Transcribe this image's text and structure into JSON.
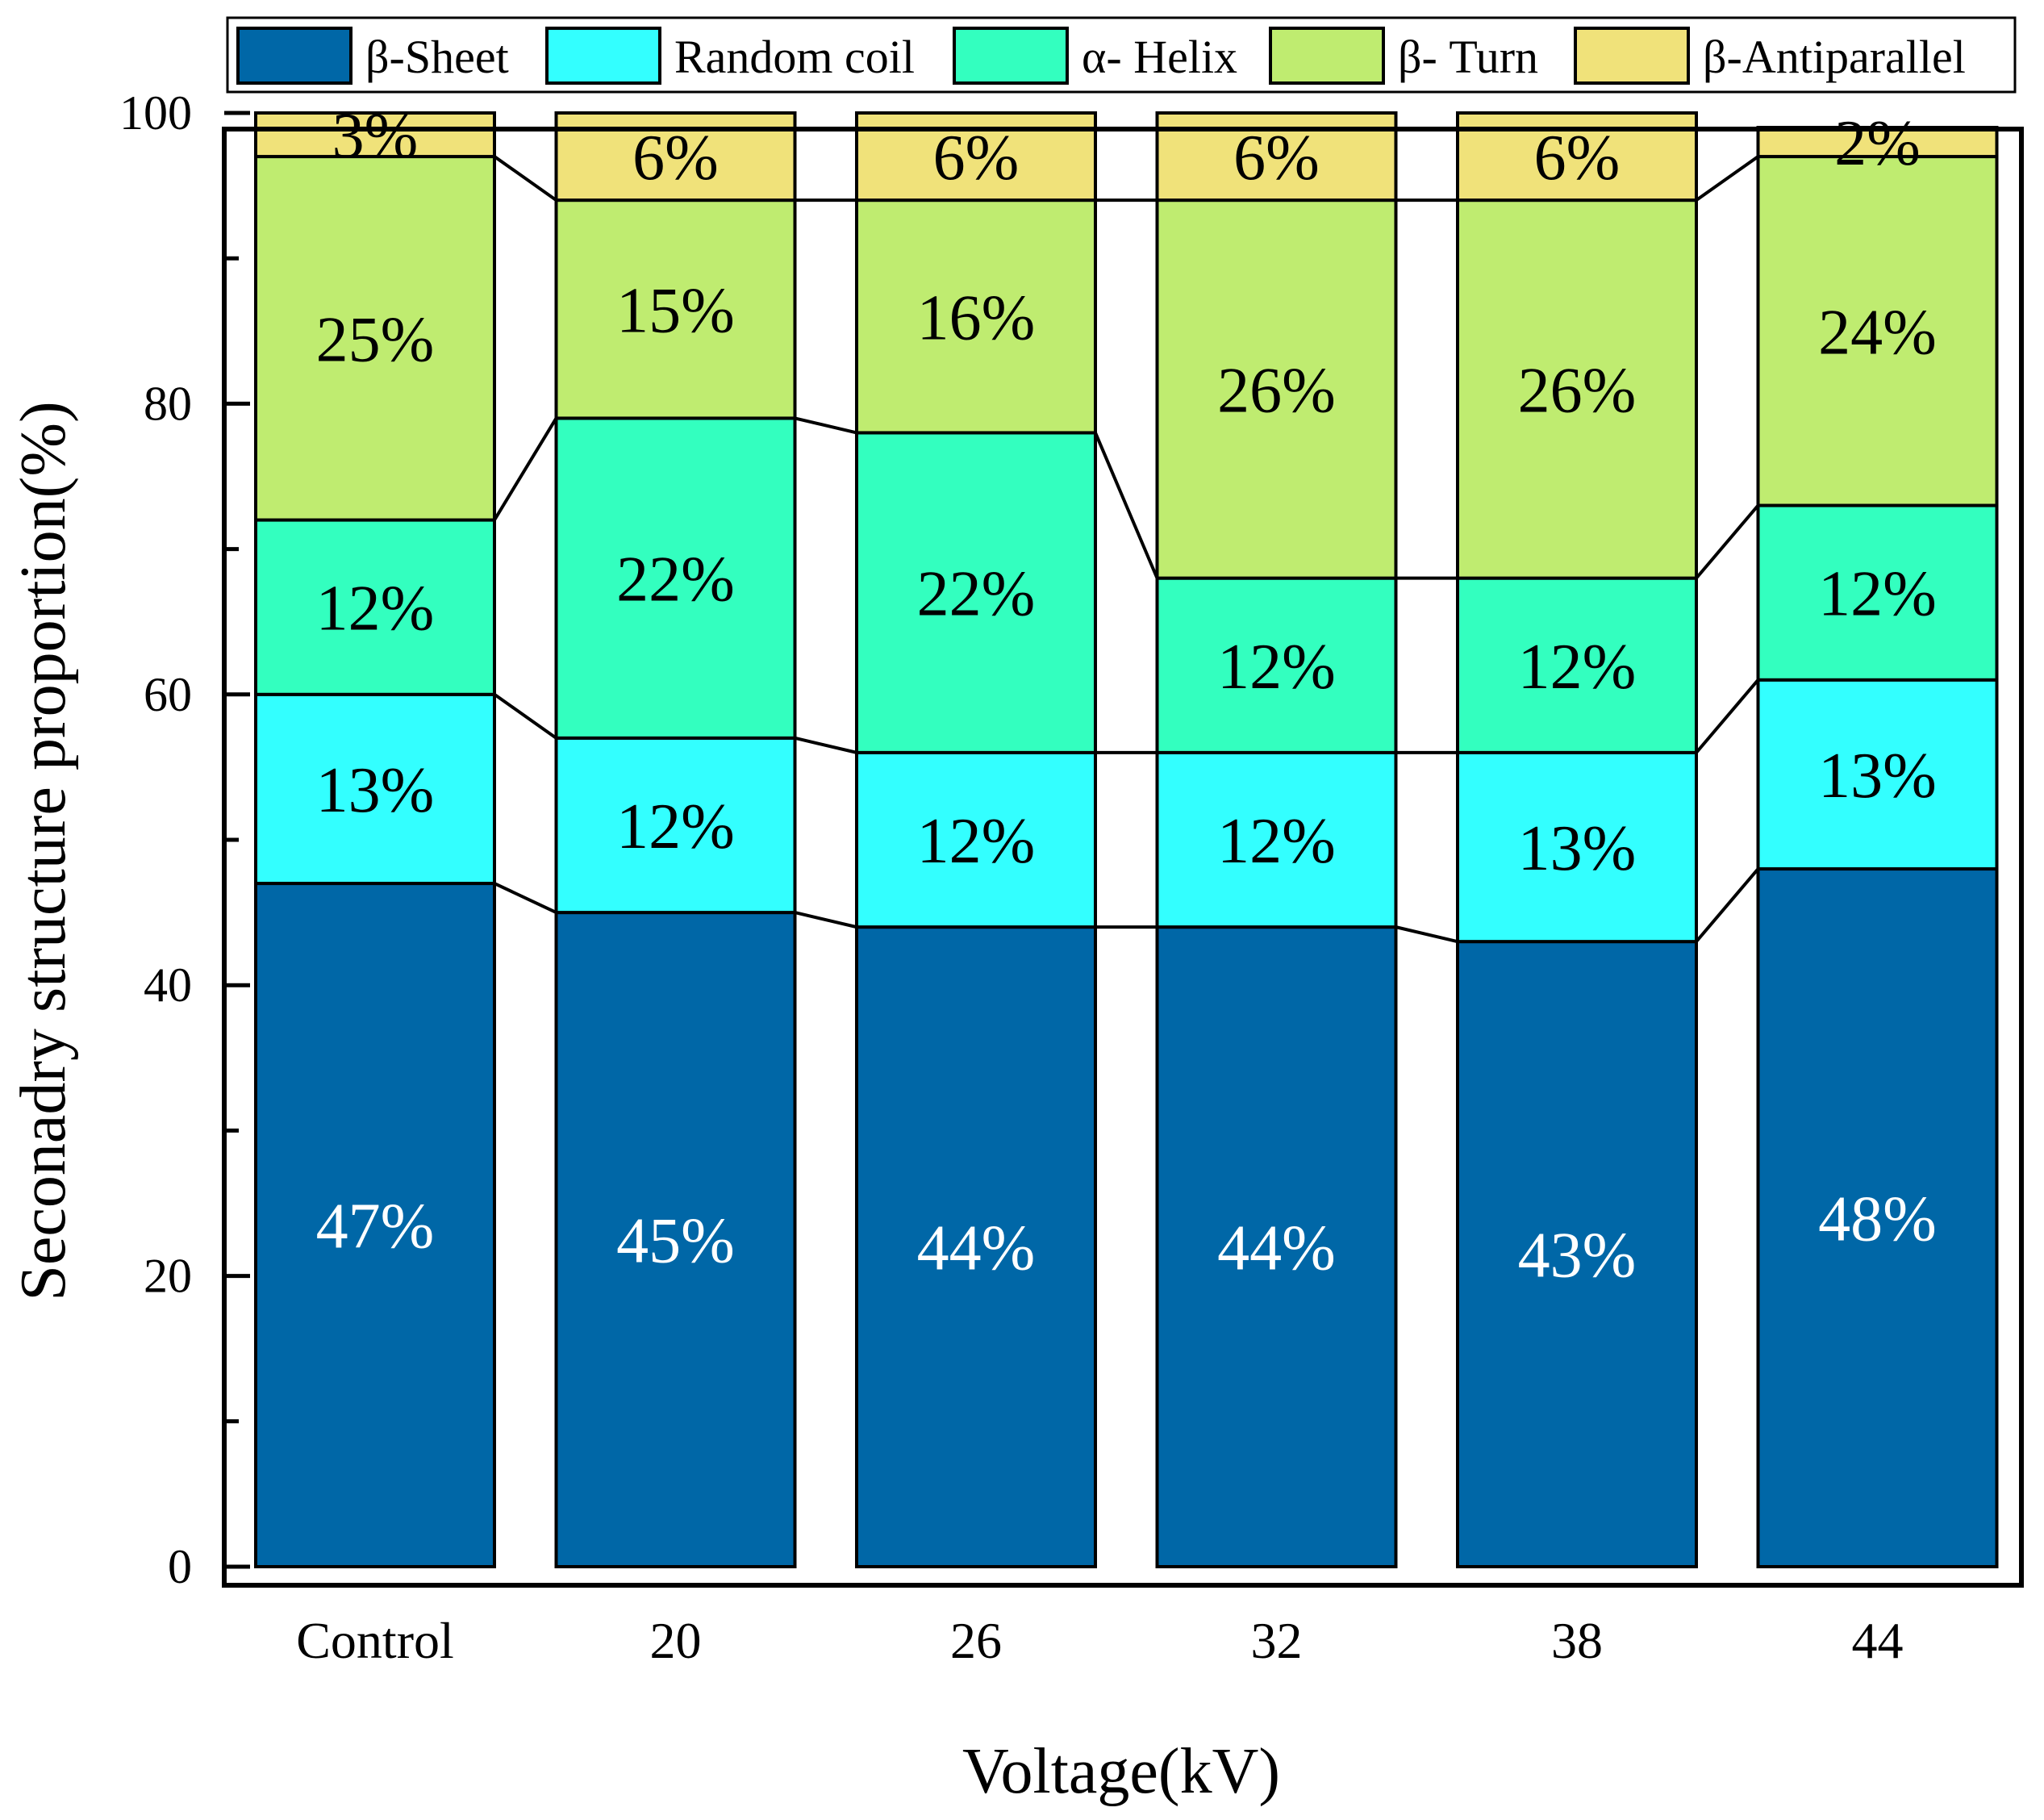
{
  "chart_data": {
    "type": "bar",
    "stacked": true,
    "categories": [
      "Control",
      "20",
      "26",
      "32",
      "38",
      "44"
    ],
    "series": [
      {
        "name": "β-Sheet",
        "color": "#0067A7",
        "values": [
          47,
          45,
          44,
          44,
          43,
          48
        ],
        "labels": [
          "47%",
          "45%",
          "44%",
          "44%",
          "43%",
          "48%"
        ],
        "label_color": "#FFFFFF"
      },
      {
        "name": "Random coil",
        "color": "#33FFFF",
        "values": [
          13,
          12,
          12,
          12,
          13,
          13
        ],
        "labels": [
          "13%",
          "12%",
          "12%",
          "12%",
          "13%",
          "13%"
        ],
        "label_color": "#000000"
      },
      {
        "name": "α- Helix",
        "color": "#33FFBF",
        "values": [
          12,
          22,
          22,
          12,
          12,
          12
        ],
        "labels": [
          "12%",
          "22%",
          "22%",
          "12%",
          "12%",
          "12%"
        ],
        "label_color": "#000000"
      },
      {
        "name": "β- Turn",
        "color": "#BFEC70",
        "values": [
          25,
          15,
          16,
          26,
          26,
          24
        ],
        "labels": [
          "25%",
          "15%",
          "16%",
          "26%",
          "26%",
          "24%"
        ],
        "label_color": "#000000"
      },
      {
        "name": "β-Antiparallel",
        "color": "#F0E27A",
        "values": [
          3,
          6,
          6,
          6,
          6,
          2
        ],
        "labels": [
          "3%",
          "6%",
          "6%",
          "6%",
          "6%",
          "2%"
        ],
        "label_color": "#000000"
      }
    ],
    "xlabel": "Voltage(kV)",
    "ylabel": "Seconadry structure proportion(%)",
    "ylim": [
      0,
      100
    ],
    "yticks": [
      0,
      20,
      40,
      60,
      80,
      100
    ],
    "legend_position": "top",
    "grid": false,
    "connector_lines": true
  }
}
